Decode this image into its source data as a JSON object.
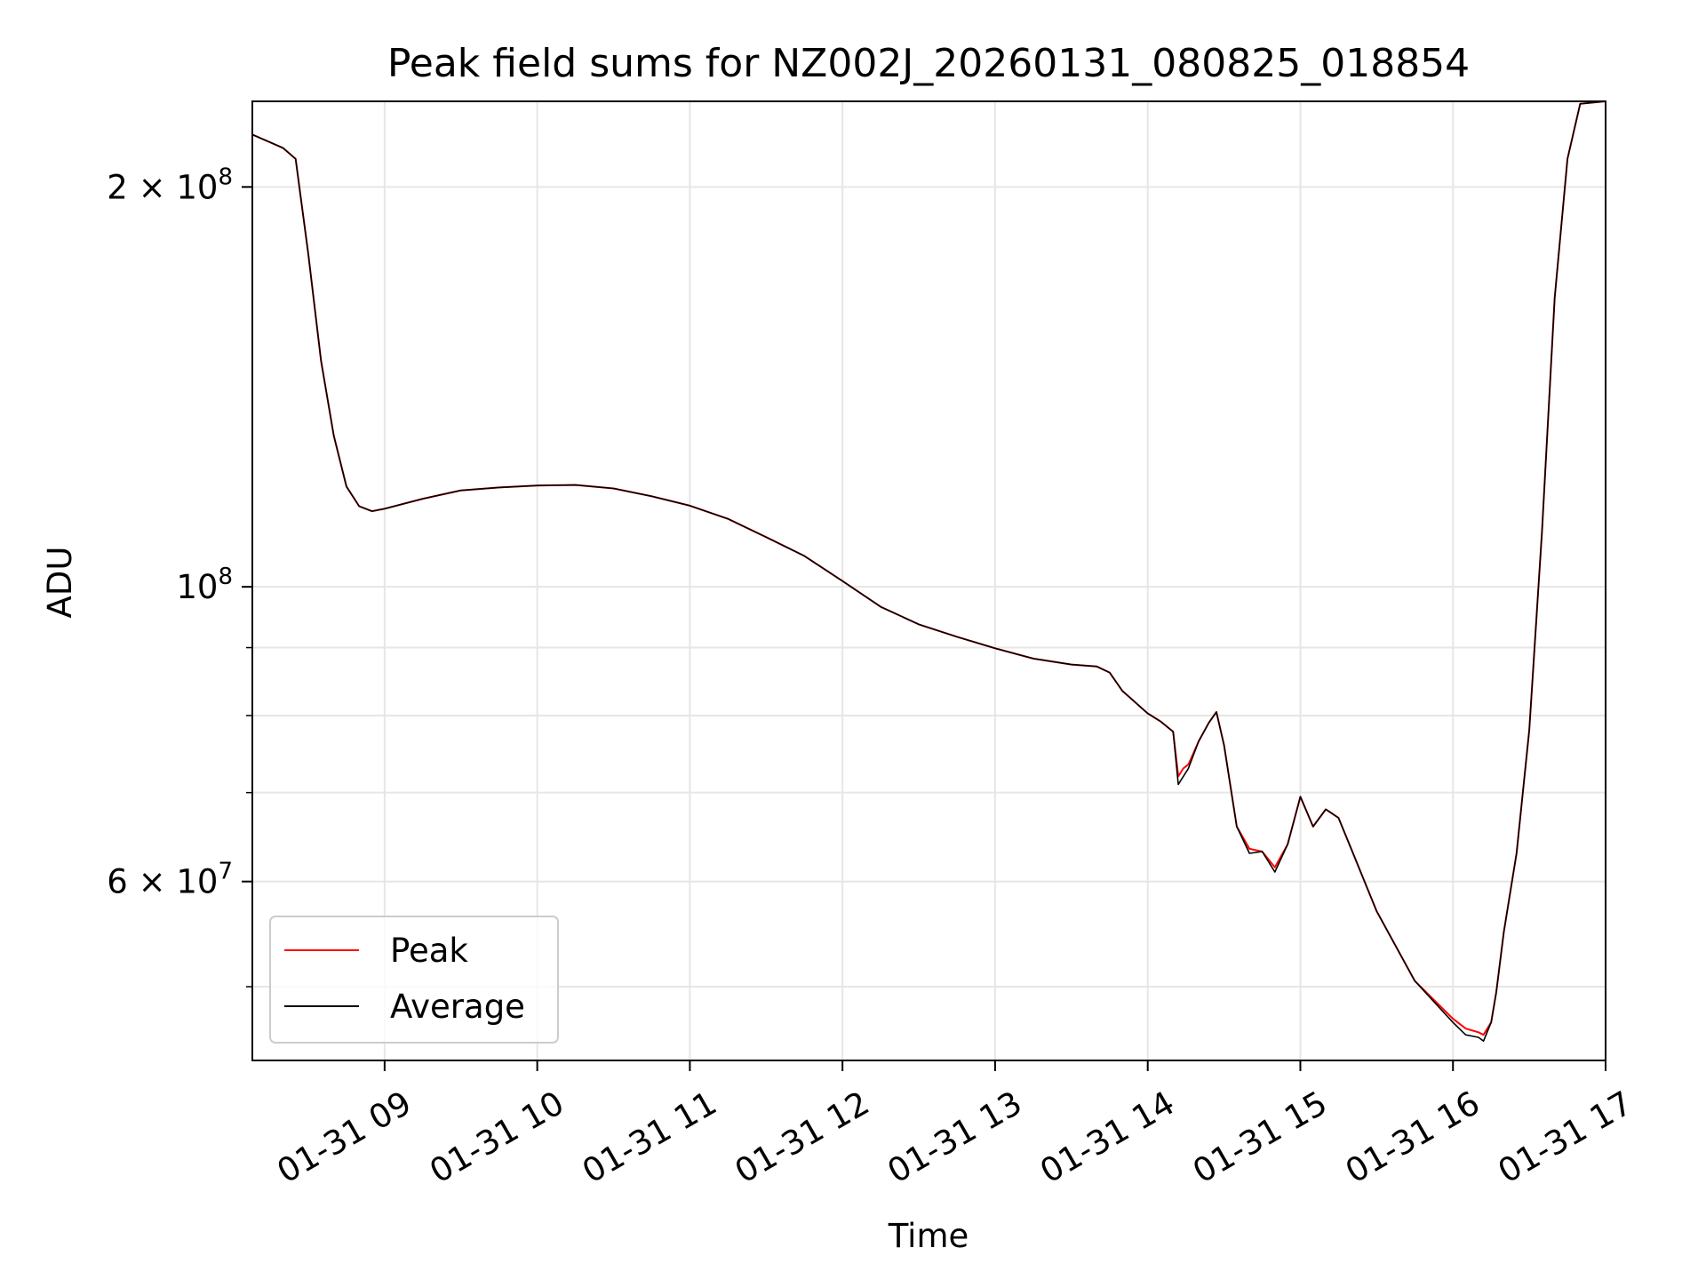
{
  "chart_data": {
    "type": "line",
    "title": "Peak field sums for NZ002J_20260131_080825_018854",
    "xlabel": "Time",
    "ylabel": "ADU",
    "y_scale": "log",
    "grid": true,
    "legend_position": "lower-left",
    "x_start": "2026-01-31 08:08",
    "x_end": "2026-01-31 17:00",
    "ylim": [
      44000000,
      232000000
    ],
    "x_ticks": [
      "01-31 09",
      "01-31 10",
      "01-31 11",
      "01-31 12",
      "01-31 13",
      "01-31 14",
      "01-31 15",
      "01-31 16",
      "01-31 17"
    ],
    "y_tick_labels": [
      {
        "value": 200000000,
        "base": "2 × 10",
        "exp": "8"
      },
      {
        "value": 100000000,
        "base": "10",
        "exp": "8"
      },
      {
        "value": 60000000,
        "base": "6 × 10",
        "exp": "7"
      }
    ],
    "y_minor_ticks": [
      50000000,
      70000000,
      80000000,
      90000000
    ],
    "x_times": [
      "08:08",
      "08:20",
      "08:25",
      "08:30",
      "08:35",
      "08:40",
      "08:45",
      "08:50",
      "08:55",
      "09:00",
      "09:15",
      "09:30",
      "09:45",
      "10:00",
      "10:15",
      "10:30",
      "10:45",
      "11:00",
      "11:15",
      "11:30",
      "11:45",
      "12:00",
      "12:15",
      "12:30",
      "12:45",
      "13:00",
      "13:15",
      "13:30",
      "13:40",
      "13:45",
      "13:50",
      "14:00",
      "14:05",
      "14:10",
      "14:12",
      "14:14",
      "14:16",
      "14:20",
      "14:24",
      "14:27",
      "14:30",
      "14:35",
      "14:40",
      "14:45",
      "14:50",
      "14:55",
      "15:00",
      "15:05",
      "15:10",
      "15:15",
      "15:20",
      "15:30",
      "15:45",
      "16:00",
      "16:05",
      "16:10",
      "16:12",
      "16:15",
      "16:17",
      "16:20",
      "16:25",
      "16:30",
      "16:35",
      "16:40",
      "16:45",
      "16:50",
      "17:00"
    ],
    "series": [
      {
        "name": "Peak",
        "color": "#ff0000",
        "values": [
          219000000,
          214000000,
          210000000,
          178000000,
          148000000,
          130000000,
          119000000,
          115000000,
          114000000,
          114500000,
          116500000,
          118200000,
          118800000,
          119200000,
          119300000,
          118600000,
          117000000,
          115100000,
          112500000,
          109000000,
          105500000,
          101000000,
          96600000,
          93700000,
          91700000,
          89900000,
          88300000,
          87400000,
          87100000,
          86200000,
          83500000,
          80300000,
          79200000,
          77800000,
          72000000,
          73000000,
          73500000,
          76500000,
          79000000,
          80500000,
          76000000,
          66000000,
          63500000,
          63200000,
          61500000,
          64000000,
          69500000,
          66000000,
          68000000,
          67000000,
          63500000,
          57000000,
          50500000,
          47300000,
          46500000,
          46200000,
          46000000,
          47000000,
          49500000,
          55000000,
          63000000,
          78000000,
          110000000,
          165000000,
          210000000,
          231000000,
          232000000
        ]
      },
      {
        "name": "Average",
        "color": "#000000",
        "values": [
          219000000,
          214000000,
          210000000,
          178000000,
          148000000,
          130000000,
          119000000,
          115000000,
          114000000,
          114500000,
          116500000,
          118200000,
          118800000,
          119200000,
          119300000,
          118600000,
          117000000,
          115100000,
          112500000,
          109000000,
          105500000,
          101000000,
          96600000,
          93700000,
          91700000,
          89900000,
          88300000,
          87400000,
          87100000,
          86200000,
          83500000,
          80300000,
          79200000,
          77800000,
          71000000,
          72000000,
          73000000,
          76500000,
          79000000,
          80500000,
          76000000,
          66000000,
          63000000,
          63200000,
          61000000,
          64000000,
          69500000,
          66000000,
          68000000,
          67000000,
          63500000,
          57000000,
          50500000,
          47000000,
          46000000,
          45800000,
          45500000,
          47000000,
          49500000,
          55000000,
          63000000,
          78000000,
          110000000,
          165000000,
          210000000,
          231000000,
          232000000
        ]
      }
    ]
  }
}
